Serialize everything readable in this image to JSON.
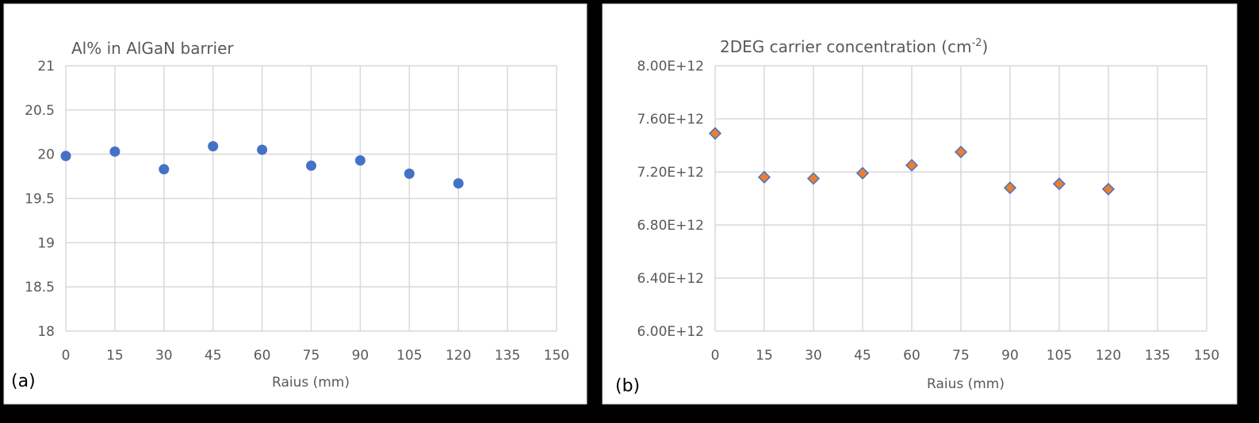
{
  "chart_data": [
    {
      "type": "scatter",
      "panel_label": "(a)",
      "title": "Al% in AlGaN barrier",
      "xlabel": "Raius (mm)",
      "ylabel": "",
      "xlim": [
        0,
        150
      ],
      "ylim": [
        18,
        21
      ],
      "xticks": [
        0,
        15,
        30,
        45,
        60,
        75,
        90,
        105,
        120,
        135,
        150
      ],
      "yticks": [
        18,
        18.5,
        19,
        19.5,
        20,
        20.5,
        21
      ],
      "ytick_labels": [
        "18",
        "18.5",
        "19",
        "19.5",
        "20",
        "20.5",
        "21"
      ],
      "grid": true,
      "marker": "circle",
      "color": "#4472c4",
      "x": [
        0,
        15,
        30,
        45,
        60,
        75,
        90,
        105,
        120
      ],
      "y": [
        19.98,
        20.03,
        19.83,
        20.09,
        20.05,
        19.87,
        19.93,
        19.78,
        19.67
      ]
    },
    {
      "type": "scatter",
      "panel_label": "(b)",
      "title": "2DEG carrier concentration (cm",
      "title_sup": "-2",
      "title_end": ")",
      "xlabel": "Raius (mm)",
      "ylabel": "",
      "xlim": [
        0,
        150
      ],
      "ylim": [
        6000000000000.0,
        8000000000000.0
      ],
      "xticks": [
        0,
        15,
        30,
        45,
        60,
        75,
        90,
        105,
        120,
        135,
        150
      ],
      "yticks": [
        6000000000000.0,
        6400000000000.0,
        6800000000000.0,
        7200000000000.0,
        7600000000000.0,
        8000000000000.0
      ],
      "ytick_labels": [
        "6.00E+12",
        "6.40E+12",
        "6.80E+12",
        "7.20E+12",
        "7.60E+12",
        "8.00E+12"
      ],
      "grid": true,
      "marker": "diamond",
      "color": "#ed7d31",
      "edge_color": "#4472c4",
      "x": [
        0,
        15,
        30,
        45,
        60,
        75,
        90,
        105,
        120
      ],
      "y": [
        7490000000000.0,
        7160000000000.0,
        7150000000000.0,
        7190000000000.0,
        7250000000000.0,
        7350000000000.0,
        7080000000000.0,
        7110000000000.0,
        7070000000000.0
      ]
    }
  ]
}
